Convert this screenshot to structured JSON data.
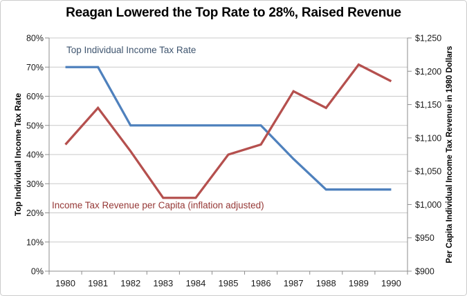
{
  "title": "Reagan Lowered the Top Rate to 28%, Raised Revenue",
  "chart_data": {
    "type": "line",
    "categories": [
      "1980",
      "1981",
      "1982",
      "1983",
      "1984",
      "1985",
      "1986",
      "1987",
      "1988",
      "1989",
      "1990"
    ],
    "series": [
      {
        "name": "top-individual-income-tax-rate",
        "label": "Top Individual Income Tax Rate",
        "axis": "left",
        "color": "#4F81BD",
        "label_color": "#3E546E",
        "values": [
          70,
          70,
          50,
          50,
          50,
          50,
          50,
          38.5,
          28,
          28,
          28
        ]
      },
      {
        "name": "income-tax-revenue-per-capita",
        "label": "Income Tax Revenue per Capita (inflation adjusted)",
        "axis": "right",
        "color": "#B5504E",
        "label_color": "#953735",
        "values": [
          1090,
          1145,
          1080,
          1010,
          1010,
          1075,
          1090,
          1170,
          1145,
          1210,
          1185
        ]
      }
    ],
    "left_axis": {
      "title": "Top Individual Income Tax Rate",
      "min": 0,
      "max": 80,
      "step": 10,
      "tick_labels": [
        "0%",
        "10%",
        "20%",
        "30%",
        "40%",
        "50%",
        "60%",
        "70%",
        "80%"
      ]
    },
    "right_axis": {
      "title": "Per Capita Individual Income Tax Revenue in 1980 Dollars",
      "min": 900,
      "max": 1250,
      "step": 50,
      "tick_labels": [
        "$900",
        "$950",
        "$1,000",
        "$1,050",
        "$1,100",
        "$1,150",
        "$1,200",
        "$1,250"
      ]
    },
    "grid": true,
    "legend": "inline-labels",
    "grid_color": "#C8C8C8",
    "axis_color": "#8C8C8C",
    "tick_label_color": "#1A1A1A"
  }
}
